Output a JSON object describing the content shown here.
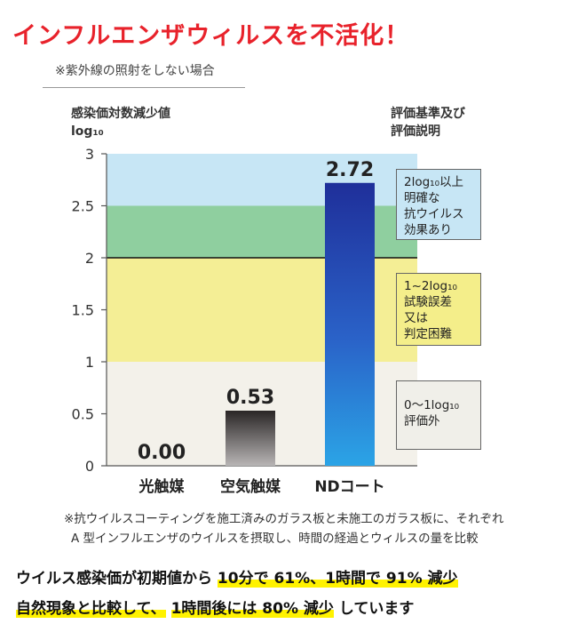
{
  "headline": "インフルエンザウィルスを不活化！",
  "condition_note": "※紫外線の照射をしない場合",
  "y_axis_label": "感染価対数減少値",
  "y_axis_unit": "log₁₀",
  "criteria_heading": [
    "評価基準及び",
    "評価説明"
  ],
  "criteria": [
    {
      "lines": [
        "2log₁₀以上",
        "明確な",
        "抗ウイルス",
        "効果あり"
      ]
    },
    {
      "lines": [
        "1~2log₁₀",
        "試験誤差",
        "又は",
        "判定困難"
      ]
    },
    {
      "lines": [
        "0～1log₁₀",
        "評価外"
      ]
    }
  ],
  "colors": {
    "headline": "#e8222b",
    "band_high": "#c7e6f5",
    "band_green": "#8fcf9f",
    "band_yellow": "#f4ee95",
    "band_low": "#f3f1ea",
    "bar_nd": "#1f2f9a",
    "bar_air": "#2a2626",
    "highlight": "#fff200"
  },
  "chart_data": {
    "type": "bar",
    "categories": [
      "光触媒",
      "空気触媒",
      "NDコート"
    ],
    "values": [
      0.0,
      0.53,
      2.72
    ],
    "value_labels": [
      "0.00",
      "0.53",
      "2.72"
    ],
    "ylim": [
      0,
      3
    ],
    "yticks": [
      "0",
      "0.5",
      "1",
      "1.5",
      "2",
      "2.5",
      "3"
    ],
    "ytick_values": [
      0,
      0.5,
      1,
      1.5,
      2,
      2.5,
      3
    ],
    "reference_line": 2,
    "bands": [
      {
        "from": 0,
        "to": 1,
        "color": "#f3f1ea"
      },
      {
        "from": 1,
        "to": 2,
        "color": "#f4ee95"
      },
      {
        "from": 2,
        "to": 2.5,
        "color": "#8fcf9f"
      },
      {
        "from": 2.5,
        "to": 3,
        "color": "#c7e6f5"
      }
    ],
    "grid": false
  },
  "footnote": [
    "※抗ウイルスコーティングを施工済みのガラス板と未施工のガラス板に、それぞれ",
    "A 型インフルエンザのウイルスを摂取し、時間の経過とウィルスの量を比較"
  ],
  "summary": {
    "line1_a": "ウイルス感染価が初期値から",
    "line1_b": "10分で 61%、1時間で 91% 減少",
    "line2_a": "自然現象と比較して、",
    "line2_b": "1時間後には 80% 減少",
    "line2_c": "しています"
  }
}
